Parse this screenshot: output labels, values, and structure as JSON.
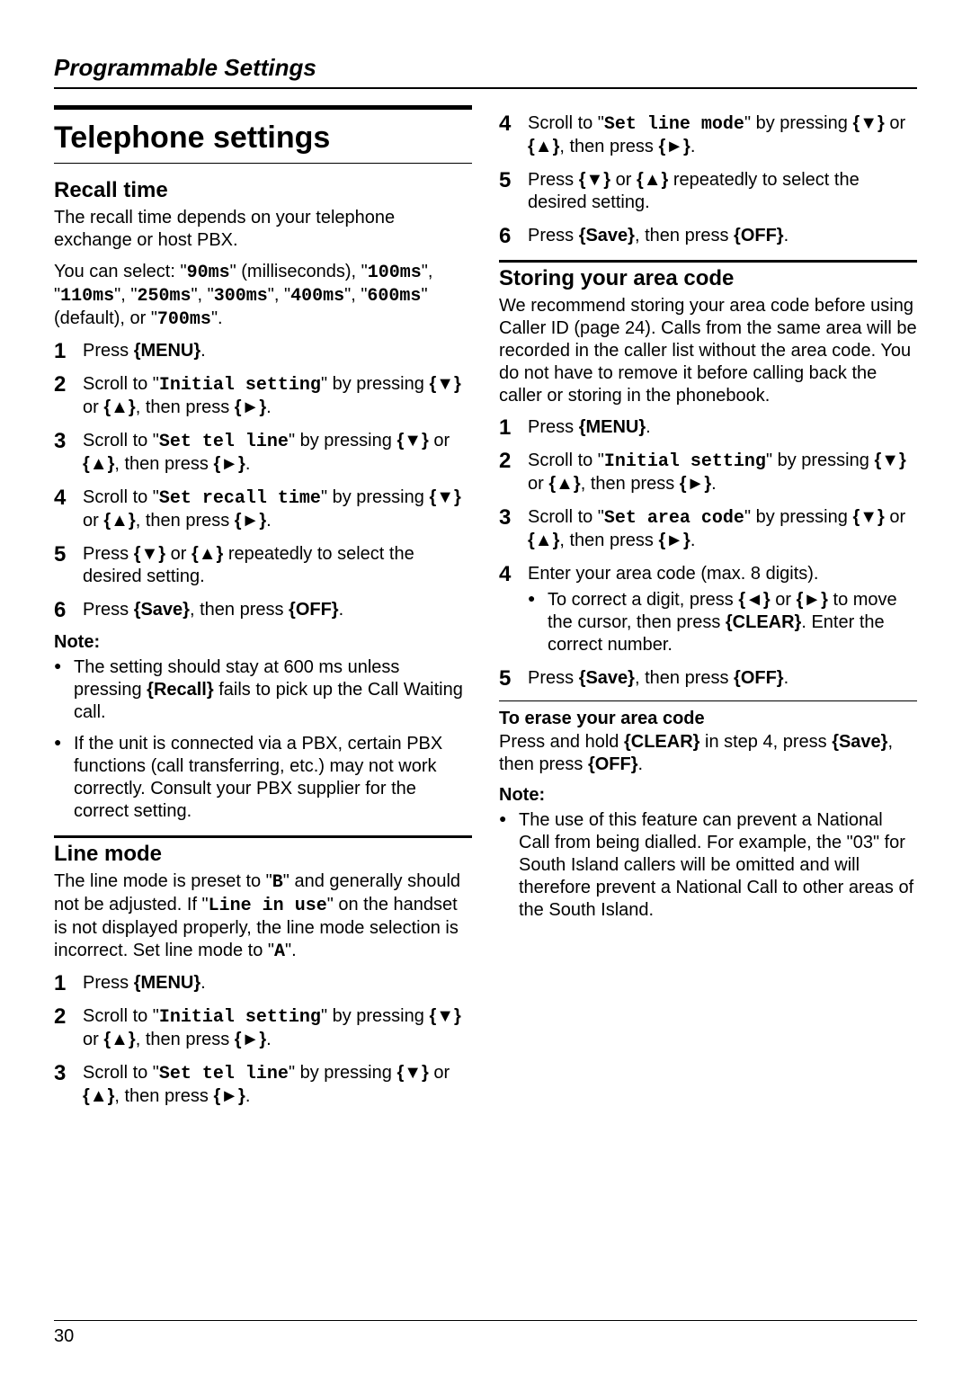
{
  "header": "Programmable Settings",
  "pageNumber": "30",
  "title": "Telephone settings",
  "recall": {
    "heading": "Recall time",
    "intro1": "The recall time depends on your telephone exchange or host PBX.",
    "intro2a": "You can select: \"",
    "ms90": "90ms",
    "intro2b": "\" (milliseconds), \"",
    "ms100": "100ms",
    "sep": "\", \"",
    "ms110": "110ms",
    "ms250": "250ms",
    "ms300": "300ms",
    "intro2c": "\", \"",
    "ms400": "400ms",
    "ms600": "600ms",
    "intro2d": "\" (default), or \"",
    "ms700": "700ms",
    "intro2e": "\".",
    "step1a": "Press ",
    "step1key": "{MENU}",
    "step1b": ".",
    "step2a": "Scroll to \"",
    "step2mono": "Initial setting",
    "step2b": "\" by pressing ",
    "down": "{▼}",
    "or": " or ",
    "up": "{▲}",
    "then": ", then press ",
    "right": "{►}",
    "period": ".",
    "step3a": "Scroll to \"",
    "step3mono": "Set tel line",
    "step3b": "\" by pressing ",
    "step4a": "Scroll to \"",
    "step4mono": "Set recall time",
    "step4b": "\" by pressing ",
    "step5a": "Press ",
    "step5b": " repeatedly to select the desired setting.",
    "step6a": "Press ",
    "save": "{Save}",
    "step6b": ", then press ",
    "off": "{OFF}",
    "noteHeading": "Note:",
    "note1a": "The setting should stay at 600 ms unless pressing ",
    "recallkey": "{Recall}",
    "note1b": " fails to pick up the Call Waiting call.",
    "note2": "If the unit is connected via a PBX, certain PBX functions (call transferring, etc.) may not work correctly. Consult your PBX supplier for the correct setting."
  },
  "linemode": {
    "heading": "Line mode",
    "intro_a": "The line mode is preset to \"",
    "B": "B",
    "intro_b": "\" and generally should not be adjusted. If \"",
    "LineInUse": "Line in use",
    "intro_c": "\" on the handset is not displayed properly, the line mode selection is incorrect. Set line mode to \"",
    "A": "A",
    "intro_d": "\".",
    "step4mono": "Set line mode"
  },
  "areacode": {
    "heading": "Storing your area code",
    "intro": "We recommend storing your area code before using Caller ID (page 24). Calls from the same area will be recorded in the caller list without the area code. You do not have to remove it before calling back the caller or storing in the phonebook.",
    "step3mono": "Set area code",
    "step4": "Enter your area code (max. 8 digits).",
    "step4bullet_a": "To correct a digit, press ",
    "left": "{◄}",
    "step4bullet_b": " to move the cursor, then press ",
    "clear": "{CLEAR}",
    "step4bullet_c": ". Enter the correct number.",
    "eraseHeading": "To erase your area code",
    "erase_a": "Press and hold ",
    "erase_b": " in step 4, press ",
    "erase_c": ", then press ",
    "noteHeading": "Note:",
    "note": "The use of this feature can prevent a National Call from being dialled. For example, the \"03\" for South Island callers will be omitted and will therefore prevent a National Call to other areas of the South Island."
  }
}
